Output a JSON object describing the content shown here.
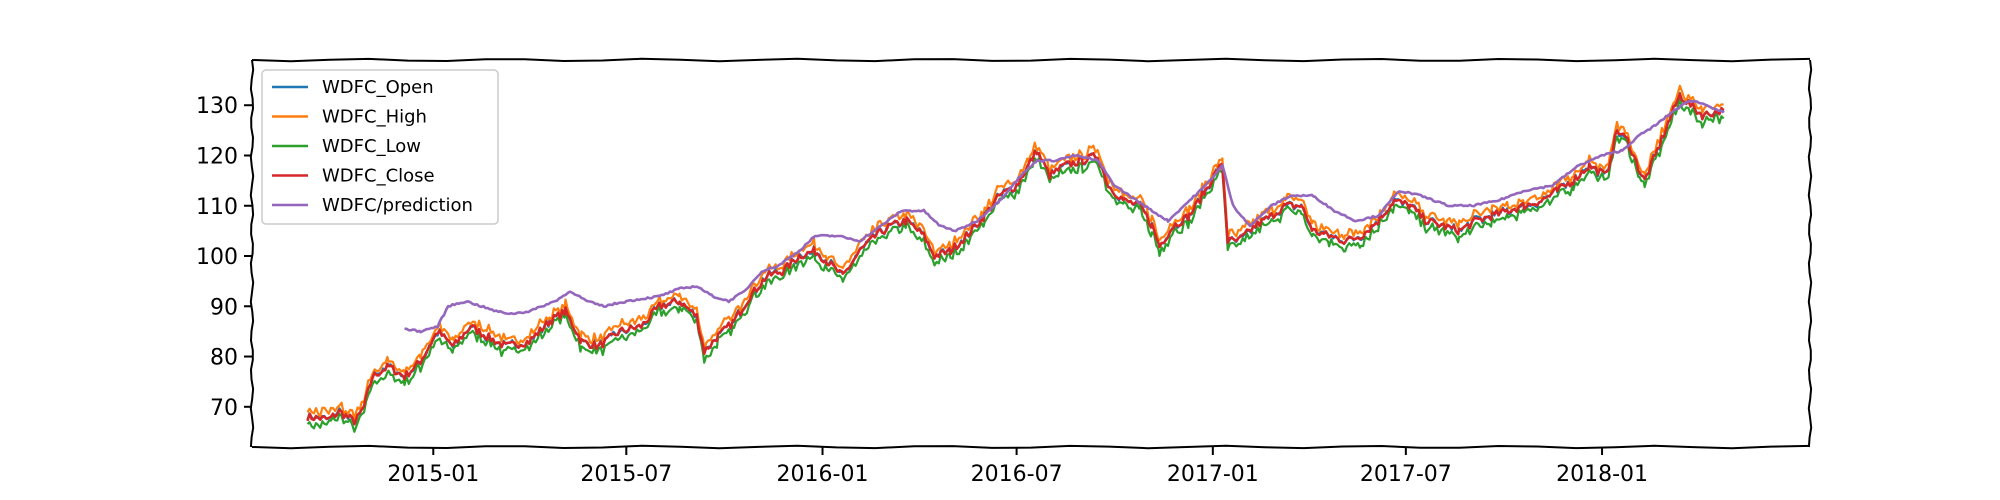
{
  "chart_data": {
    "type": "line",
    "title": "",
    "xlabel": "",
    "ylabel": "",
    "xlim": [
      "2014-07-15",
      "2018-07-15"
    ],
    "ylim": [
      62,
      139
    ],
    "grid": false,
    "legend_position": "top-left",
    "x_ticks": [
      "2015-01",
      "2015-07",
      "2016-01",
      "2016-07",
      "2017-01",
      "2017-07",
      "2018-01"
    ],
    "y_ticks": [
      70,
      80,
      90,
      100,
      110,
      120,
      130
    ],
    "series": [
      {
        "name": "WDFC_Open",
        "color": "#1f77b4"
      },
      {
        "name": "WDFC_High",
        "color": "#ff7f0e"
      },
      {
        "name": "WDFC_Low",
        "color": "#2ca02c"
      },
      {
        "name": "WDFC_Close",
        "color": "#d62728"
      },
      {
        "name": "WDFC/prediction",
        "color": "#9467bd"
      }
    ],
    "close_anchors": [
      [
        "2014-09-05",
        68
      ],
      [
        "2014-09-25",
        67.5
      ],
      [
        "2014-10-05",
        69
      ],
      [
        "2014-10-20",
        67
      ],
      [
        "2014-10-28",
        70
      ],
      [
        "2014-11-05",
        76
      ],
      [
        "2014-11-20",
        78
      ],
      [
        "2014-12-05",
        76
      ],
      [
        "2014-12-20",
        79
      ],
      [
        "2015-01-05",
        85
      ],
      [
        "2015-01-20",
        82
      ],
      [
        "2015-02-05",
        86
      ],
      [
        "2015-02-20",
        84
      ],
      [
        "2015-03-10",
        82
      ],
      [
        "2015-04-01",
        83
      ],
      [
        "2015-04-20",
        87
      ],
      [
        "2015-05-05",
        89
      ],
      [
        "2015-05-20",
        83
      ],
      [
        "2015-06-05",
        82
      ],
      [
        "2015-06-25",
        85
      ],
      [
        "2015-07-15",
        86
      ],
      [
        "2015-08-01",
        90
      ],
      [
        "2015-08-20",
        91
      ],
      [
        "2015-09-05",
        88
      ],
      [
        "2015-09-12",
        81
      ],
      [
        "2015-09-25",
        84
      ],
      [
        "2015-10-10",
        87
      ],
      [
        "2015-10-25",
        92
      ],
      [
        "2015-11-10",
        96
      ],
      [
        "2015-11-25",
        97
      ],
      [
        "2015-12-10",
        100
      ],
      [
        "2015-12-25",
        101
      ],
      [
        "2016-01-05",
        99
      ],
      [
        "2016-01-20",
        96
      ],
      [
        "2016-02-05",
        101
      ],
      [
        "2016-02-20",
        104
      ],
      [
        "2016-03-05",
        106
      ],
      [
        "2016-03-20",
        107
      ],
      [
        "2016-04-05",
        104
      ],
      [
        "2016-04-15",
        100
      ],
      [
        "2016-04-30",
        101
      ],
      [
        "2016-05-15",
        104
      ],
      [
        "2016-06-01",
        108
      ],
      [
        "2016-06-15",
        112
      ],
      [
        "2016-07-01",
        114
      ],
      [
        "2016-07-12",
        118
      ],
      [
        "2016-07-20",
        121
      ],
      [
        "2016-08-01",
        116
      ],
      [
        "2016-08-15",
        118
      ],
      [
        "2016-09-01",
        119
      ],
      [
        "2016-09-15",
        120
      ],
      [
        "2016-09-25",
        114
      ],
      [
        "2016-10-10",
        111
      ],
      [
        "2016-10-25",
        110
      ],
      [
        "2016-11-05",
        106
      ],
      [
        "2016-11-12",
        102
      ],
      [
        "2016-11-25",
        106
      ],
      [
        "2016-12-10",
        108
      ],
      [
        "2016-12-25",
        113
      ],
      [
        "2017-01-05",
        117
      ],
      [
        "2017-01-10",
        118
      ],
      [
        "2017-01-15",
        103
      ],
      [
        "2017-01-25",
        103
      ],
      [
        "2017-02-10",
        106
      ],
      [
        "2017-02-25",
        108
      ],
      [
        "2017-03-10",
        110
      ],
      [
        "2017-03-25",
        110
      ],
      [
        "2017-04-05",
        105
      ],
      [
        "2017-04-20",
        104
      ],
      [
        "2017-05-05",
        103
      ],
      [
        "2017-05-20",
        104
      ],
      [
        "2017-06-05",
        107
      ],
      [
        "2017-06-20",
        111
      ],
      [
        "2017-07-05",
        110
      ],
      [
        "2017-07-20",
        107
      ],
      [
        "2017-08-05",
        106
      ],
      [
        "2017-08-20",
        105
      ],
      [
        "2017-09-05",
        107
      ],
      [
        "2017-09-20",
        108
      ],
      [
        "2017-10-05",
        109
      ],
      [
        "2017-10-20",
        110
      ],
      [
        "2017-11-05",
        111
      ],
      [
        "2017-11-20",
        113
      ],
      [
        "2017-12-05",
        115
      ],
      [
        "2017-12-20",
        118
      ],
      [
        "2018-01-05",
        116
      ],
      [
        "2018-01-15",
        125
      ],
      [
        "2018-01-25",
        123
      ],
      [
        "2018-02-05",
        117
      ],
      [
        "2018-02-10",
        115
      ],
      [
        "2018-02-20",
        120
      ],
      [
        "2018-03-05",
        127
      ],
      [
        "2018-03-15",
        132
      ],
      [
        "2018-03-25",
        130
      ],
      [
        "2018-04-05",
        128
      ],
      [
        "2018-04-25",
        129
      ]
    ],
    "prediction_anchors": [
      [
        "2014-12-05",
        85.5
      ],
      [
        "2014-12-20",
        85
      ],
      [
        "2015-01-05",
        86
      ],
      [
        "2015-01-15",
        90
      ],
      [
        "2015-02-01",
        91
      ],
      [
        "2015-02-15",
        90
      ],
      [
        "2015-03-01",
        89
      ],
      [
        "2015-03-15",
        88.5
      ],
      [
        "2015-04-01",
        89
      ],
      [
        "2015-04-25",
        91
      ],
      [
        "2015-05-10",
        93
      ],
      [
        "2015-05-25",
        91
      ],
      [
        "2015-06-10",
        90
      ],
      [
        "2015-07-01",
        91
      ],
      [
        "2015-08-01",
        92
      ],
      [
        "2015-08-20",
        93.5
      ],
      [
        "2015-09-05",
        94
      ],
      [
        "2015-09-20",
        92
      ],
      [
        "2015-10-05",
        91
      ],
      [
        "2015-10-20",
        93
      ],
      [
        "2015-11-05",
        97
      ],
      [
        "2015-11-20",
        98
      ],
      [
        "2015-12-10",
        101
      ],
      [
        "2015-12-25",
        104
      ],
      [
        "2016-01-15",
        104
      ],
      [
        "2016-02-05",
        103
      ],
      [
        "2016-02-25",
        106
      ],
      [
        "2016-03-15",
        109
      ],
      [
        "2016-04-05",
        109
      ],
      [
        "2016-04-20",
        106
      ],
      [
        "2016-05-05",
        105
      ],
      [
        "2016-05-25",
        107
      ],
      [
        "2016-06-15",
        111
      ],
      [
        "2016-07-05",
        116
      ],
      [
        "2016-07-20",
        119
      ],
      [
        "2016-08-05",
        119
      ],
      [
        "2016-08-25",
        120
      ],
      [
        "2016-09-15",
        119
      ],
      [
        "2016-10-01",
        114
      ],
      [
        "2016-10-15",
        112
      ],
      [
        "2016-11-05",
        109
      ],
      [
        "2016-11-20",
        107
      ],
      [
        "2016-12-10",
        111
      ],
      [
        "2016-12-25",
        114
      ],
      [
        "2017-01-10",
        118
      ],
      [
        "2017-01-20",
        110
      ],
      [
        "2017-02-05",
        106
      ],
      [
        "2017-02-25",
        110
      ],
      [
        "2017-03-15",
        112
      ],
      [
        "2017-04-05",
        112
      ],
      [
        "2017-04-25",
        109
      ],
      [
        "2017-05-15",
        107
      ],
      [
        "2017-06-05",
        108
      ],
      [
        "2017-06-25",
        113
      ],
      [
        "2017-07-15",
        112
      ],
      [
        "2017-08-10",
        110
      ],
      [
        "2017-09-01",
        110
      ],
      [
        "2017-09-25",
        111
      ],
      [
        "2017-10-20",
        113
      ],
      [
        "2017-11-15",
        114
      ],
      [
        "2017-12-10",
        118
      ],
      [
        "2018-01-01",
        120
      ],
      [
        "2018-01-20",
        121
      ],
      [
        "2018-02-05",
        124
      ],
      [
        "2018-02-20",
        126
      ],
      [
        "2018-03-10",
        129
      ],
      [
        "2018-03-25",
        131
      ],
      [
        "2018-04-10",
        130
      ],
      [
        "2018-04-25",
        128.5
      ]
    ]
  }
}
